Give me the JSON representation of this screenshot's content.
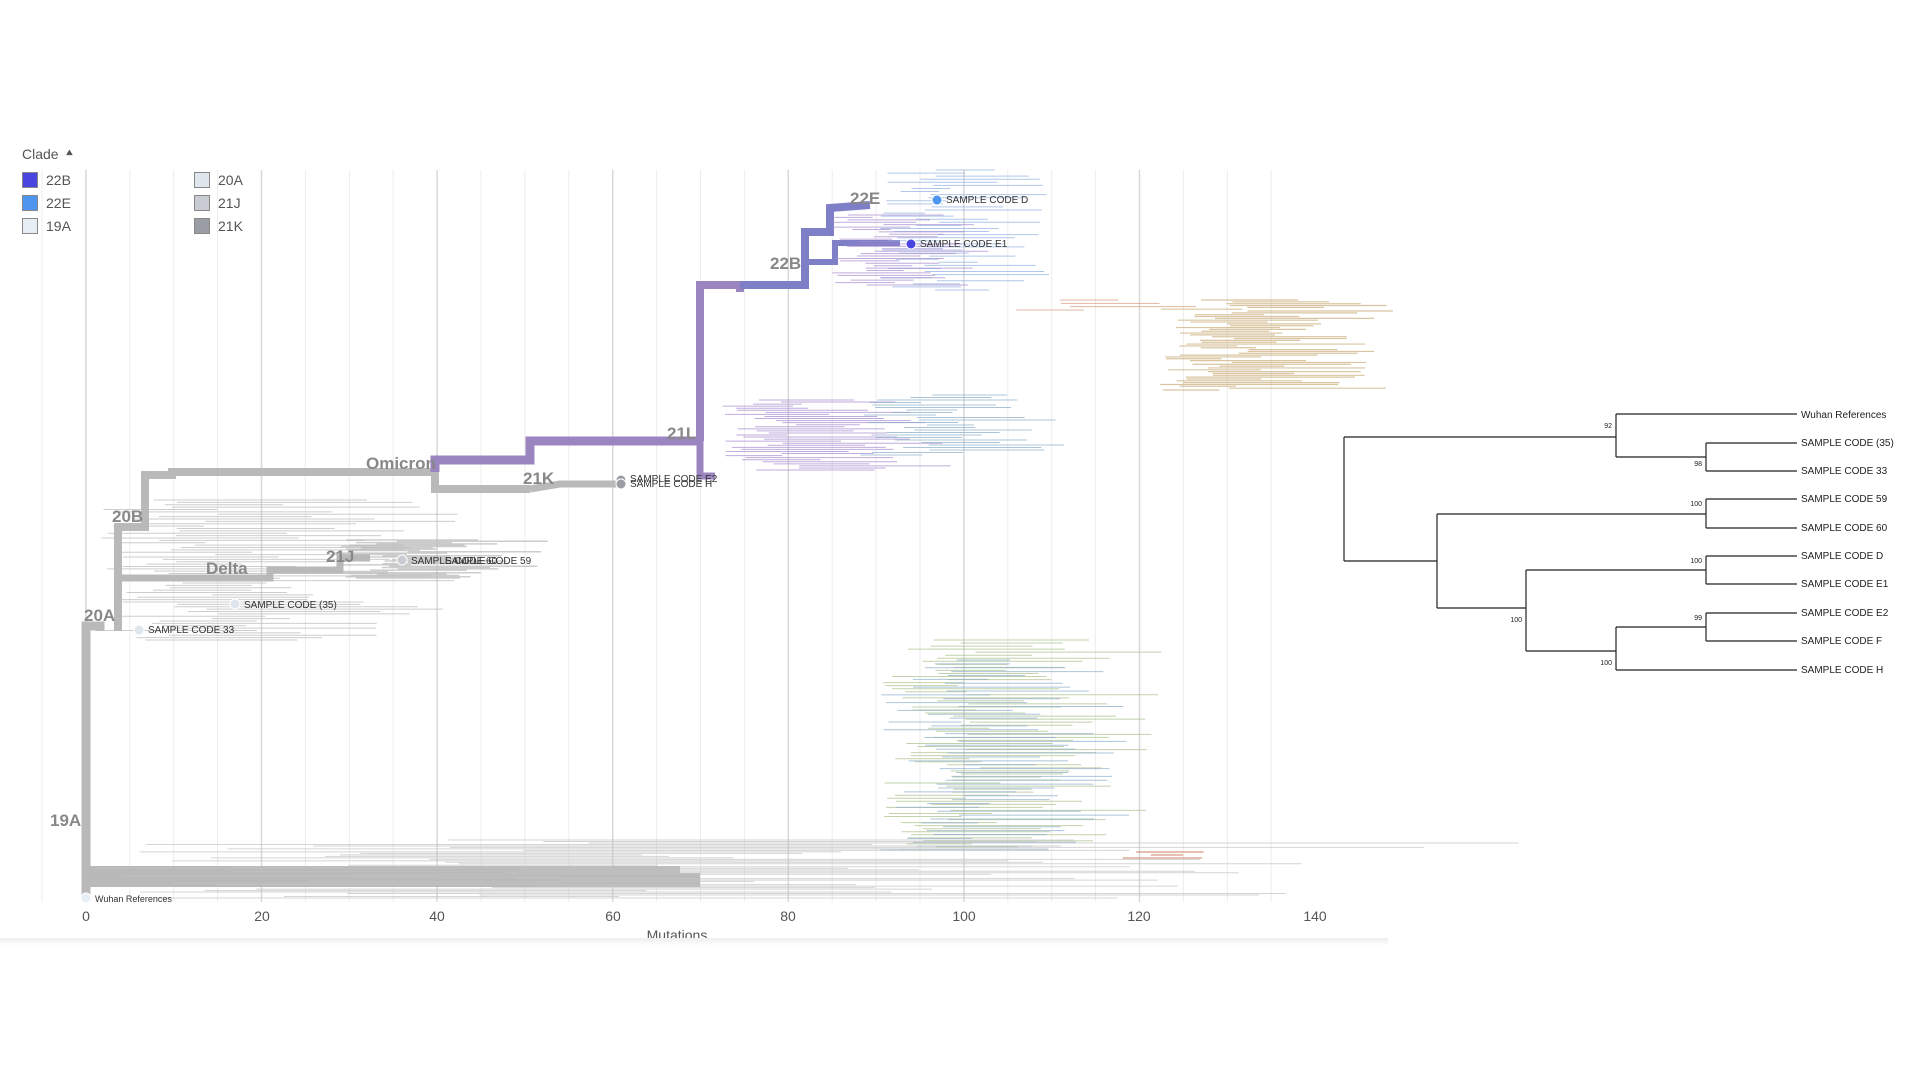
{
  "legend": {
    "title": "Clade",
    "collapse_icon": "chevron-up-icon",
    "items": [
      {
        "label": "22B",
        "color": "#4a45e0"
      },
      {
        "label": "22E",
        "color": "#4d96f0"
      },
      {
        "label": "19A",
        "color": "#e8eef6"
      },
      {
        "label": "20A",
        "color": "#dfe6ee"
      },
      {
        "label": "21J",
        "color": "#c8ccd2"
      },
      {
        "label": "21K",
        "color": "#9a9ea4"
      }
    ]
  },
  "main_tree": {
    "x_axis": {
      "label": "Mutations",
      "ticks": [
        "0",
        "20",
        "40",
        "60",
        "80",
        "100",
        "120",
        "140"
      ]
    },
    "clade_labels": [
      "22E",
      "22B",
      "21L",
      "Omicron",
      "21K",
      "20B",
      "21J",
      "Delta",
      "20A",
      "19A"
    ],
    "sample_labels": [
      "SAMPLE CODE D",
      "SAMPLE CODE E1",
      "SAMPLE CODE E2",
      "SAMPLE CODE H",
      "SAMPLE CODE 60",
      "SAMPLE CODE 59",
      "SAMPLE CODE (35)",
      "SAMPLE CODE 33",
      "Wuhan References"
    ],
    "colors": {
      "backbone": "#b9b9b9",
      "omicron": "#9b85c0",
      "22b_branch": "#7f7fc8",
      "22e_tips": "#8fb0e0",
      "21l_tips": "#a58ad0",
      "tan_tips": "#c9ad7a",
      "green_tips": "#a9c08a",
      "blue_tips": "#8aaccb",
      "orange_tips": "#d48a6a"
    }
  },
  "side_tree": {
    "leaves": [
      "Wuhan References",
      "SAMPLE CODE (35)",
      "SAMPLE CODE 33",
      "SAMPLE CODE 59",
      "SAMPLE CODE 60",
      "SAMPLE CODE D",
      "SAMPLE CODE E1",
      "SAMPLE CODE E2",
      "SAMPLE CODE F",
      "SAMPLE CODE H"
    ],
    "support_values": [
      "92",
      "98",
      "100",
      "100",
      "99",
      "100",
      "100"
    ]
  }
}
